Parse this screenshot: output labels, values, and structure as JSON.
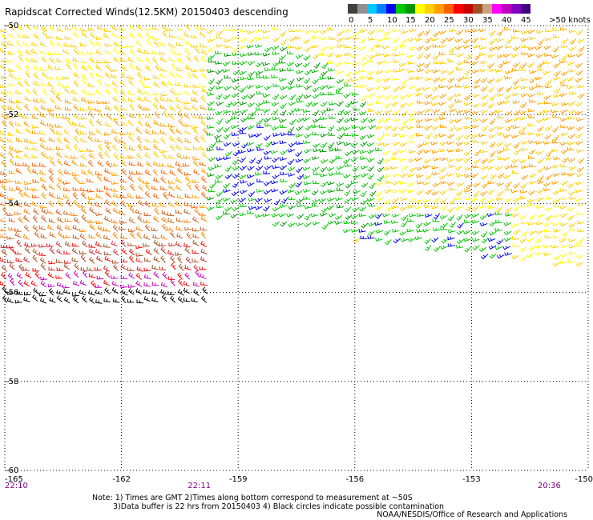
{
  "title": "Rapidscat Corrected Winds(12.5KM) 20150403 descending",
  "legend": {
    "colors": [
      "#404040",
      "#909090",
      "#00c8ff",
      "#0080ff",
      "#0000ff",
      "#00c800",
      "#009600",
      "#ffff00",
      "#ffd000",
      "#ffa000",
      "#ff6000",
      "#ff0000",
      "#c80000",
      "#a05020",
      "#c8a080",
      "#ff00ff",
      "#c000c0",
      "#8000c0",
      "#400080"
    ],
    "labels": [
      "0",
      "5",
      "10",
      "15",
      "20",
      "25",
      "30",
      "35",
      "40",
      "45",
      ">50 knots"
    ]
  },
  "map": {
    "lat_labels": [
      "-50",
      "-52",
      "-54",
      "-56",
      "-58",
      "-60"
    ],
    "lon_labels": [
      "-165",
      "-162",
      "-159",
      "-156",
      "-153",
      "-150"
    ],
    "lat_range": [
      -60,
      -50
    ],
    "lon_range": [
      -165,
      -150
    ],
    "times": [
      {
        "label": "22:10",
        "lon": -165
      },
      {
        "label": "22:11",
        "lon": -160
      },
      {
        "label": "20:36",
        "lon": -151
      }
    ],
    "grid": "dotted"
  },
  "notes": {
    "line1": "Note: 1) Times are GMT 2)Times along bottom correspond to measurement at ~50S",
    "line2": "3)Data buffer is 22 hrs from 20150403 4) Black circles indicate possible contamination"
  },
  "credit": "NOAA/NESDIS/Office of Research and Applications"
}
